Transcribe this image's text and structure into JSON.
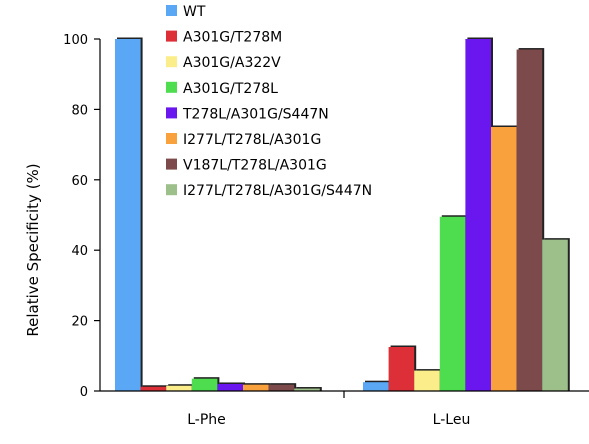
{
  "chart_data": {
    "type": "bar",
    "categories": [
      "L-Phe",
      "L-Leu"
    ],
    "ylabel": "Relative Specificity (%)",
    "xlabel": "",
    "ylim": [
      0,
      100
    ],
    "yticks": [
      0,
      20,
      40,
      60,
      80,
      100
    ],
    "grid": false,
    "legend_position": "top-center",
    "series": [
      {
        "name": "WT",
        "color": "#5aa8f5",
        "values": [
          100,
          2.5
        ]
      },
      {
        "name": "A301G/T278M",
        "color": "#dc2f37",
        "values": [
          1.2,
          12.5
        ]
      },
      {
        "name": "A301G/A322V",
        "color": "#fbee8a",
        "values": [
          1.5,
          5.8
        ]
      },
      {
        "name": "A301G/T278L",
        "color": "#4ddd4f",
        "values": [
          3.5,
          49.5
        ]
      },
      {
        "name": "T278L/A301G/S447N",
        "color": "#6a16ee",
        "values": [
          2.0,
          100
        ]
      },
      {
        "name": "I277L/T278L/A301G",
        "color": "#f9a23d",
        "values": [
          1.8,
          75
        ]
      },
      {
        "name": "V187L/T278L/A301G",
        "color": "#7c4a4a",
        "values": [
          1.8,
          97
        ]
      },
      {
        "name": "I277L/T278L/A301G/S447N",
        "color": "#9dc08b",
        "values": [
          0.7,
          43
        ]
      }
    ]
  }
}
